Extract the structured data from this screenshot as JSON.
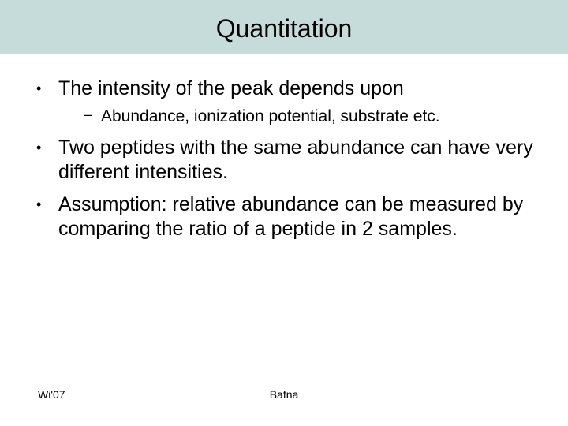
{
  "title_band_color": "#c5dcdb",
  "title": "Quantitation",
  "bullets": [
    {
      "text": "The intensity of the peak depends upon",
      "sub": [
        "Abundance, ionization potential, substrate etc."
      ]
    },
    {
      "text": "Two peptides with the same abundance can have very different intensities.",
      "sub": []
    },
    {
      "text": "Assumption: relative abundance can be measured by comparing the ratio of a peptide in 2 samples.",
      "sub": []
    }
  ],
  "footer": {
    "left": "Wi'07",
    "center": "Bafna"
  },
  "typography": {
    "title_fontsize": 32,
    "lvl1_fontsize": 25,
    "lvl2_fontsize": 21,
    "footer_fontsize": 14,
    "font_family": "Arial",
    "text_color": "#000000",
    "background_color": "#ffffff"
  }
}
